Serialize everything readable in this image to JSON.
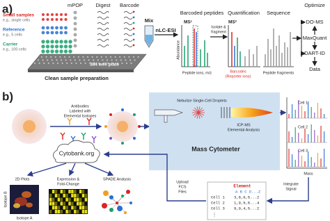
{
  "panel_a": {
    "label": "a)",
    "samples": [
      {
        "name": "Small samples",
        "example": "e.g., single cells"
      },
      {
        "name": "Reference",
        "example": "e.g., 5 cells"
      },
      {
        "name": "Carrier",
        "example": "e.g., 100 cells"
      }
    ],
    "prep_steps": [
      "mPOP",
      "Digest",
      "Barcode"
    ],
    "mix": "Mix",
    "plate": "384 well plate",
    "prep_caption": "Clean sample preparation",
    "separation": "nLC-ESI",
    "ms1": {
      "title": "Barcoded peptides",
      "label": "MS¹",
      "y_axis": "Abundance",
      "x_axis": "Peptide ions, m/z"
    },
    "isolate": [
      "Isolate &",
      "fragment"
    ],
    "ms2": {
      "title": "Quantification",
      "label": "MS²",
      "caption": "Barcodes",
      "subcaption": "(Reporter ions)"
    },
    "sequence": {
      "title": "Sequence",
      "caption": "Peptide fragments"
    },
    "optimize": {
      "title": "Optimize",
      "tools": [
        "DO-MS",
        "MaxQuant",
        "DART-ID"
      ],
      "output": "Data"
    }
  },
  "panel_b": {
    "label": "b)",
    "antibodies": [
      "Antibodies",
      "Labeled with",
      "Elemental Isotopes"
    ],
    "nebulize": "Nebulize Single-Cell Droplets",
    "icp": [
      "ICP-MS",
      "Elemental Analysis"
    ],
    "instrument": "Mass Cytometer",
    "cells": [
      "Cell 1",
      "Cell 2",
      "Cell 3"
    ],
    "mass_axis": "Mass",
    "integrate": [
      "Integrate",
      "Signal"
    ],
    "table": {
      "title": "Element",
      "header": "A B C D...Z",
      "rows": [
        [
          "Cell 1",
          "3,8,6,5...2"
        ],
        [
          "Cell 2",
          "1,9,5,8...4"
        ],
        [
          "Cell 3",
          "9,9,4,5...2"
        ]
      ],
      "more": "⋮"
    },
    "upload": [
      "Upload",
      "FCS",
      "Files"
    ],
    "cloud": "Cytobank.org",
    "analyses": [
      {
        "lines": [
          "2D Plots"
        ]
      },
      {
        "lines": [
          "Expression &",
          "Fold-Change"
        ]
      },
      {
        "lines": [
          "SPADE Analysis"
        ]
      }
    ],
    "plot_axes": {
      "y": "Isotope B",
      "x": "Isotope A"
    }
  }
}
